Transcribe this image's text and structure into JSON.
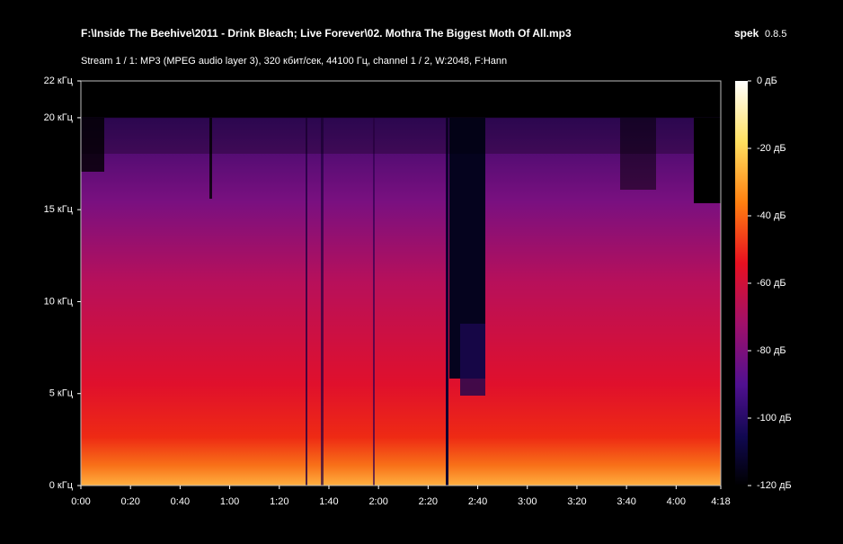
{
  "chart_data": {
    "type": "spectrogram",
    "title": "F:\\Inside The Beehive\\2011 - Drink Bleach; Live Forever\\02. Mothra The Biggest Moth Of All.mp3",
    "app_name": "spek",
    "app_version": "0.8.5",
    "subtitle": "Stream 1 / 1: MP3 (MPEG audio layer 3), 320 кбит/сек, 44100 Гц, channel 1 / 2, W:2048, F:Hann",
    "xlim": [
      0,
      258
    ],
    "xticks": [
      {
        "value": 0,
        "label": "0:00"
      },
      {
        "value": 20,
        "label": "0:20"
      },
      {
        "value": 40,
        "label": "0:40"
      },
      {
        "value": 60,
        "label": "1:00"
      },
      {
        "value": 80,
        "label": "1:20"
      },
      {
        "value": 100,
        "label": "1:40"
      },
      {
        "value": 120,
        "label": "2:00"
      },
      {
        "value": 140,
        "label": "2:20"
      },
      {
        "value": 160,
        "label": "2:40"
      },
      {
        "value": 180,
        "label": "3:00"
      },
      {
        "value": 200,
        "label": "3:20"
      },
      {
        "value": 220,
        "label": "3:40"
      },
      {
        "value": 240,
        "label": "4:00"
      },
      {
        "value": 258,
        "label": "4:18"
      }
    ],
    "ylim": [
      0,
      22
    ],
    "yticks": [
      {
        "value": 0,
        "label": "0 кГц"
      },
      {
        "value": 5,
        "label": "5 кГц"
      },
      {
        "value": 10,
        "label": "10 кГц"
      },
      {
        "value": 15,
        "label": "15 кГц"
      },
      {
        "value": 20,
        "label": "20 кГц"
      },
      {
        "value": 22,
        "label": "22 кГц"
      }
    ],
    "zlim": [
      -120,
      0
    ],
    "zticks": [
      {
        "value": 0,
        "label": "0 дБ"
      },
      {
        "value": -20,
        "label": "-20 дБ"
      },
      {
        "value": -40,
        "label": "-40 дБ"
      },
      {
        "value": -60,
        "label": "-60 дБ"
      },
      {
        "value": -80,
        "label": "-80 дБ"
      },
      {
        "value": -100,
        "label": "-100 дБ"
      },
      {
        "value": -120,
        "label": "-120 дБ"
      }
    ]
  }
}
